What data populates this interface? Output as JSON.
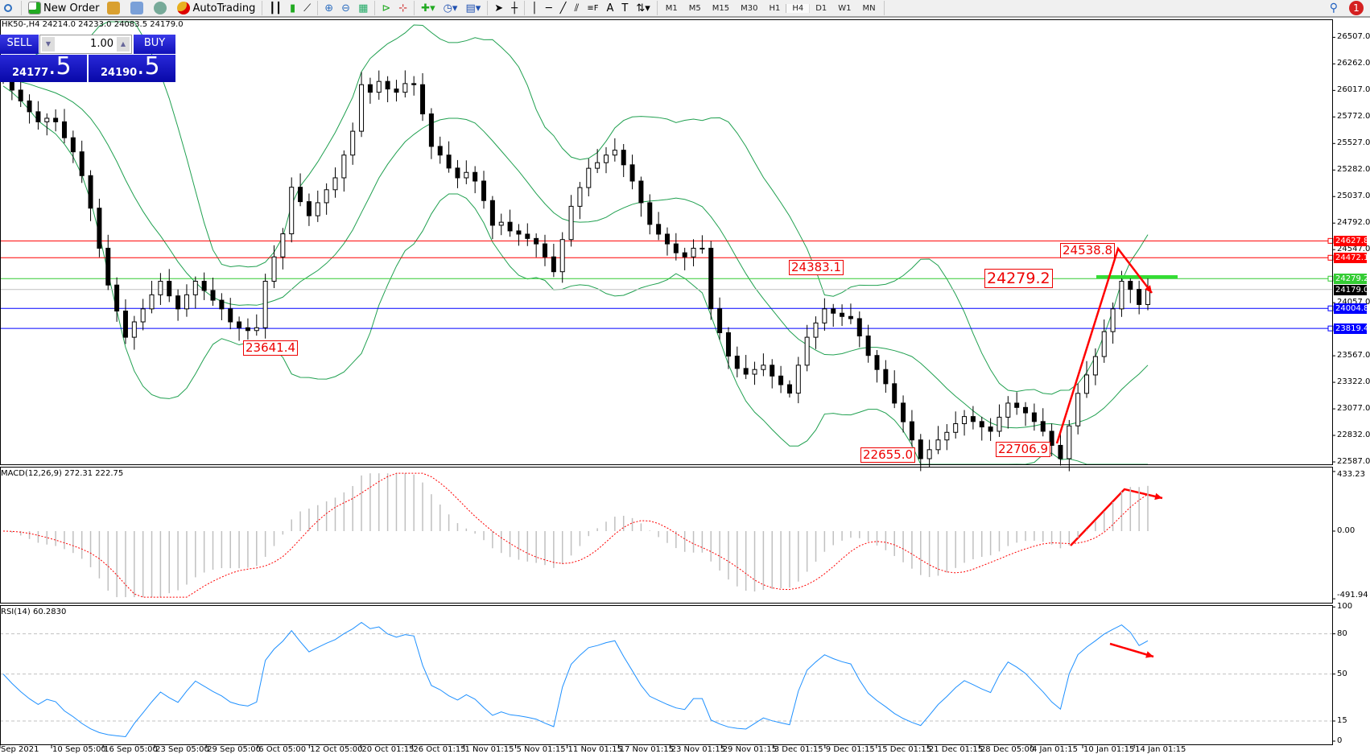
{
  "toolbar": {
    "new_order": "New Order",
    "autotrading": "AutoTrading",
    "timeframes": [
      "M1",
      "M5",
      "M15",
      "M30",
      "H1",
      "H4",
      "D1",
      "W1",
      "MN"
    ],
    "active_timeframe": "H4",
    "notifications": "1"
  },
  "chart_header": "HK50-,H4  24214.0 24233.0 24083.5 24179.0",
  "trade_panel": {
    "sell": "SELL",
    "buy": "BUY",
    "volume": "1.00",
    "sell_price_main": "24177",
    "sell_price_tail": ".5",
    "buy_price_main": "24190",
    "buy_price_tail": ".5"
  },
  "price_axis": [
    "26507.0",
    "26262.0",
    "26017.0",
    "25772.0",
    "25527.0",
    "25282.0",
    "25037.0",
    "24792.0",
    "24547.0",
    "24057.0",
    "23567.0",
    "23322.0",
    "23077.0",
    "22832.0",
    "22587.0"
  ],
  "levels": [
    {
      "price": "24627.8",
      "color": "#ff0000"
    },
    {
      "price": "24472.1",
      "color": "#ff0000"
    },
    {
      "price": "24279.2",
      "color": "#33cc33"
    },
    {
      "price": "24179.0",
      "color": "#000000",
      "line": "#c0c0c0"
    },
    {
      "price": "24004.8",
      "color": "#0000ff"
    },
    {
      "price": "23819.4",
      "color": "#0000ff"
    }
  ],
  "annotations": [
    "24383.1",
    "23641.4",
    "22655.0",
    "22706.9",
    "24538.8",
    "24279.2"
  ],
  "macd": {
    "title": "MACD(12,26,9) 272.31 222.75",
    "axis": [
      "433.23",
      "0.00",
      "-491.94"
    ]
  },
  "rsi": {
    "title": "RSI(14) 60.2830",
    "axis": [
      "100",
      "80",
      "50",
      "15",
      "0"
    ]
  },
  "dates": [
    "Sep 2021",
    "10 Sep 05:00",
    "16 Sep 05:00",
    "23 Sep 05:00",
    "29 Sep 05:00",
    "6 Oct 05:00",
    "12 Oct 05:00",
    "20 Oct 01:15",
    "26 Oct 01:15",
    "1 Nov 01:15",
    "5 Nov 01:15",
    "11 Nov 01:15",
    "17 Nov 01:15",
    "23 Nov 01:15",
    "29 Nov 01:15",
    "3 Dec 01:15",
    "9 Dec 01:15",
    "15 Dec 01:15",
    "21 Dec 01:15",
    "28 Dec 05:00",
    "4 Jan 01:15",
    "10 Jan 01:15",
    "14 Jan 01:15"
  ],
  "chart_data": {
    "type": "candlestick",
    "symbol": "HK50-",
    "timeframe": "H4",
    "ylim": [
      22587,
      26507
    ],
    "closes": [
      26117,
      26020,
      25920,
      25820,
      25727,
      25760,
      25727,
      25580,
      25450,
      25230,
      24930,
      24560,
      24220,
      23980,
      23738,
      23880,
      24000,
      24130,
      24255,
      24120,
      24000,
      24130,
      24255,
      24170,
      24080,
      24000,
      23880,
      23826,
      23800,
      23826,
      24255,
      24480,
      24693,
      25123,
      24990,
      24860,
      24980,
      25100,
      25210,
      25420,
      25640,
      26070,
      26000,
      26100,
      26030,
      26000,
      26080,
      26070,
      25800,
      25500,
      25420,
      25300,
      25210,
      25260,
      25180,
      25000,
      24772,
      24800,
      24720,
      24690,
      24650,
      24600,
      24480,
      24343,
      24640,
      24947,
      25120,
      25298,
      25350,
      25420,
      25465,
      25330,
      25180,
      24980,
      24780,
      24690,
      24600,
      24518,
      24480,
      24560,
      24560,
      24001,
      23780,
      23564,
      23450,
      23397,
      23440,
      23480,
      23380,
      23300,
      23222,
      23480,
      23738,
      23870,
      24000,
      23960,
      23930,
      23910,
      23750,
      23570,
      23440,
      23309,
      23130,
      22958,
      22790,
      22617,
      22700,
      22790,
      22860,
      22940,
      23006,
      22960,
      22910,
      22870,
      23000,
      23130,
      23090,
      23040,
      22960,
      22870,
      22740,
      22617,
      22920,
      23220,
      23390,
      23560,
      23790,
      24000,
      24255,
      24180,
      24040,
      24179
    ],
    "indicators": [
      "Bollinger Bands",
      "MACD(12,26,9)",
      "RSI(14)"
    ],
    "colors": {
      "bands": "#20a050",
      "macd_signal": "#ff0000",
      "rsi": "#1e90ff",
      "arrows": "#ff0000"
    }
  }
}
